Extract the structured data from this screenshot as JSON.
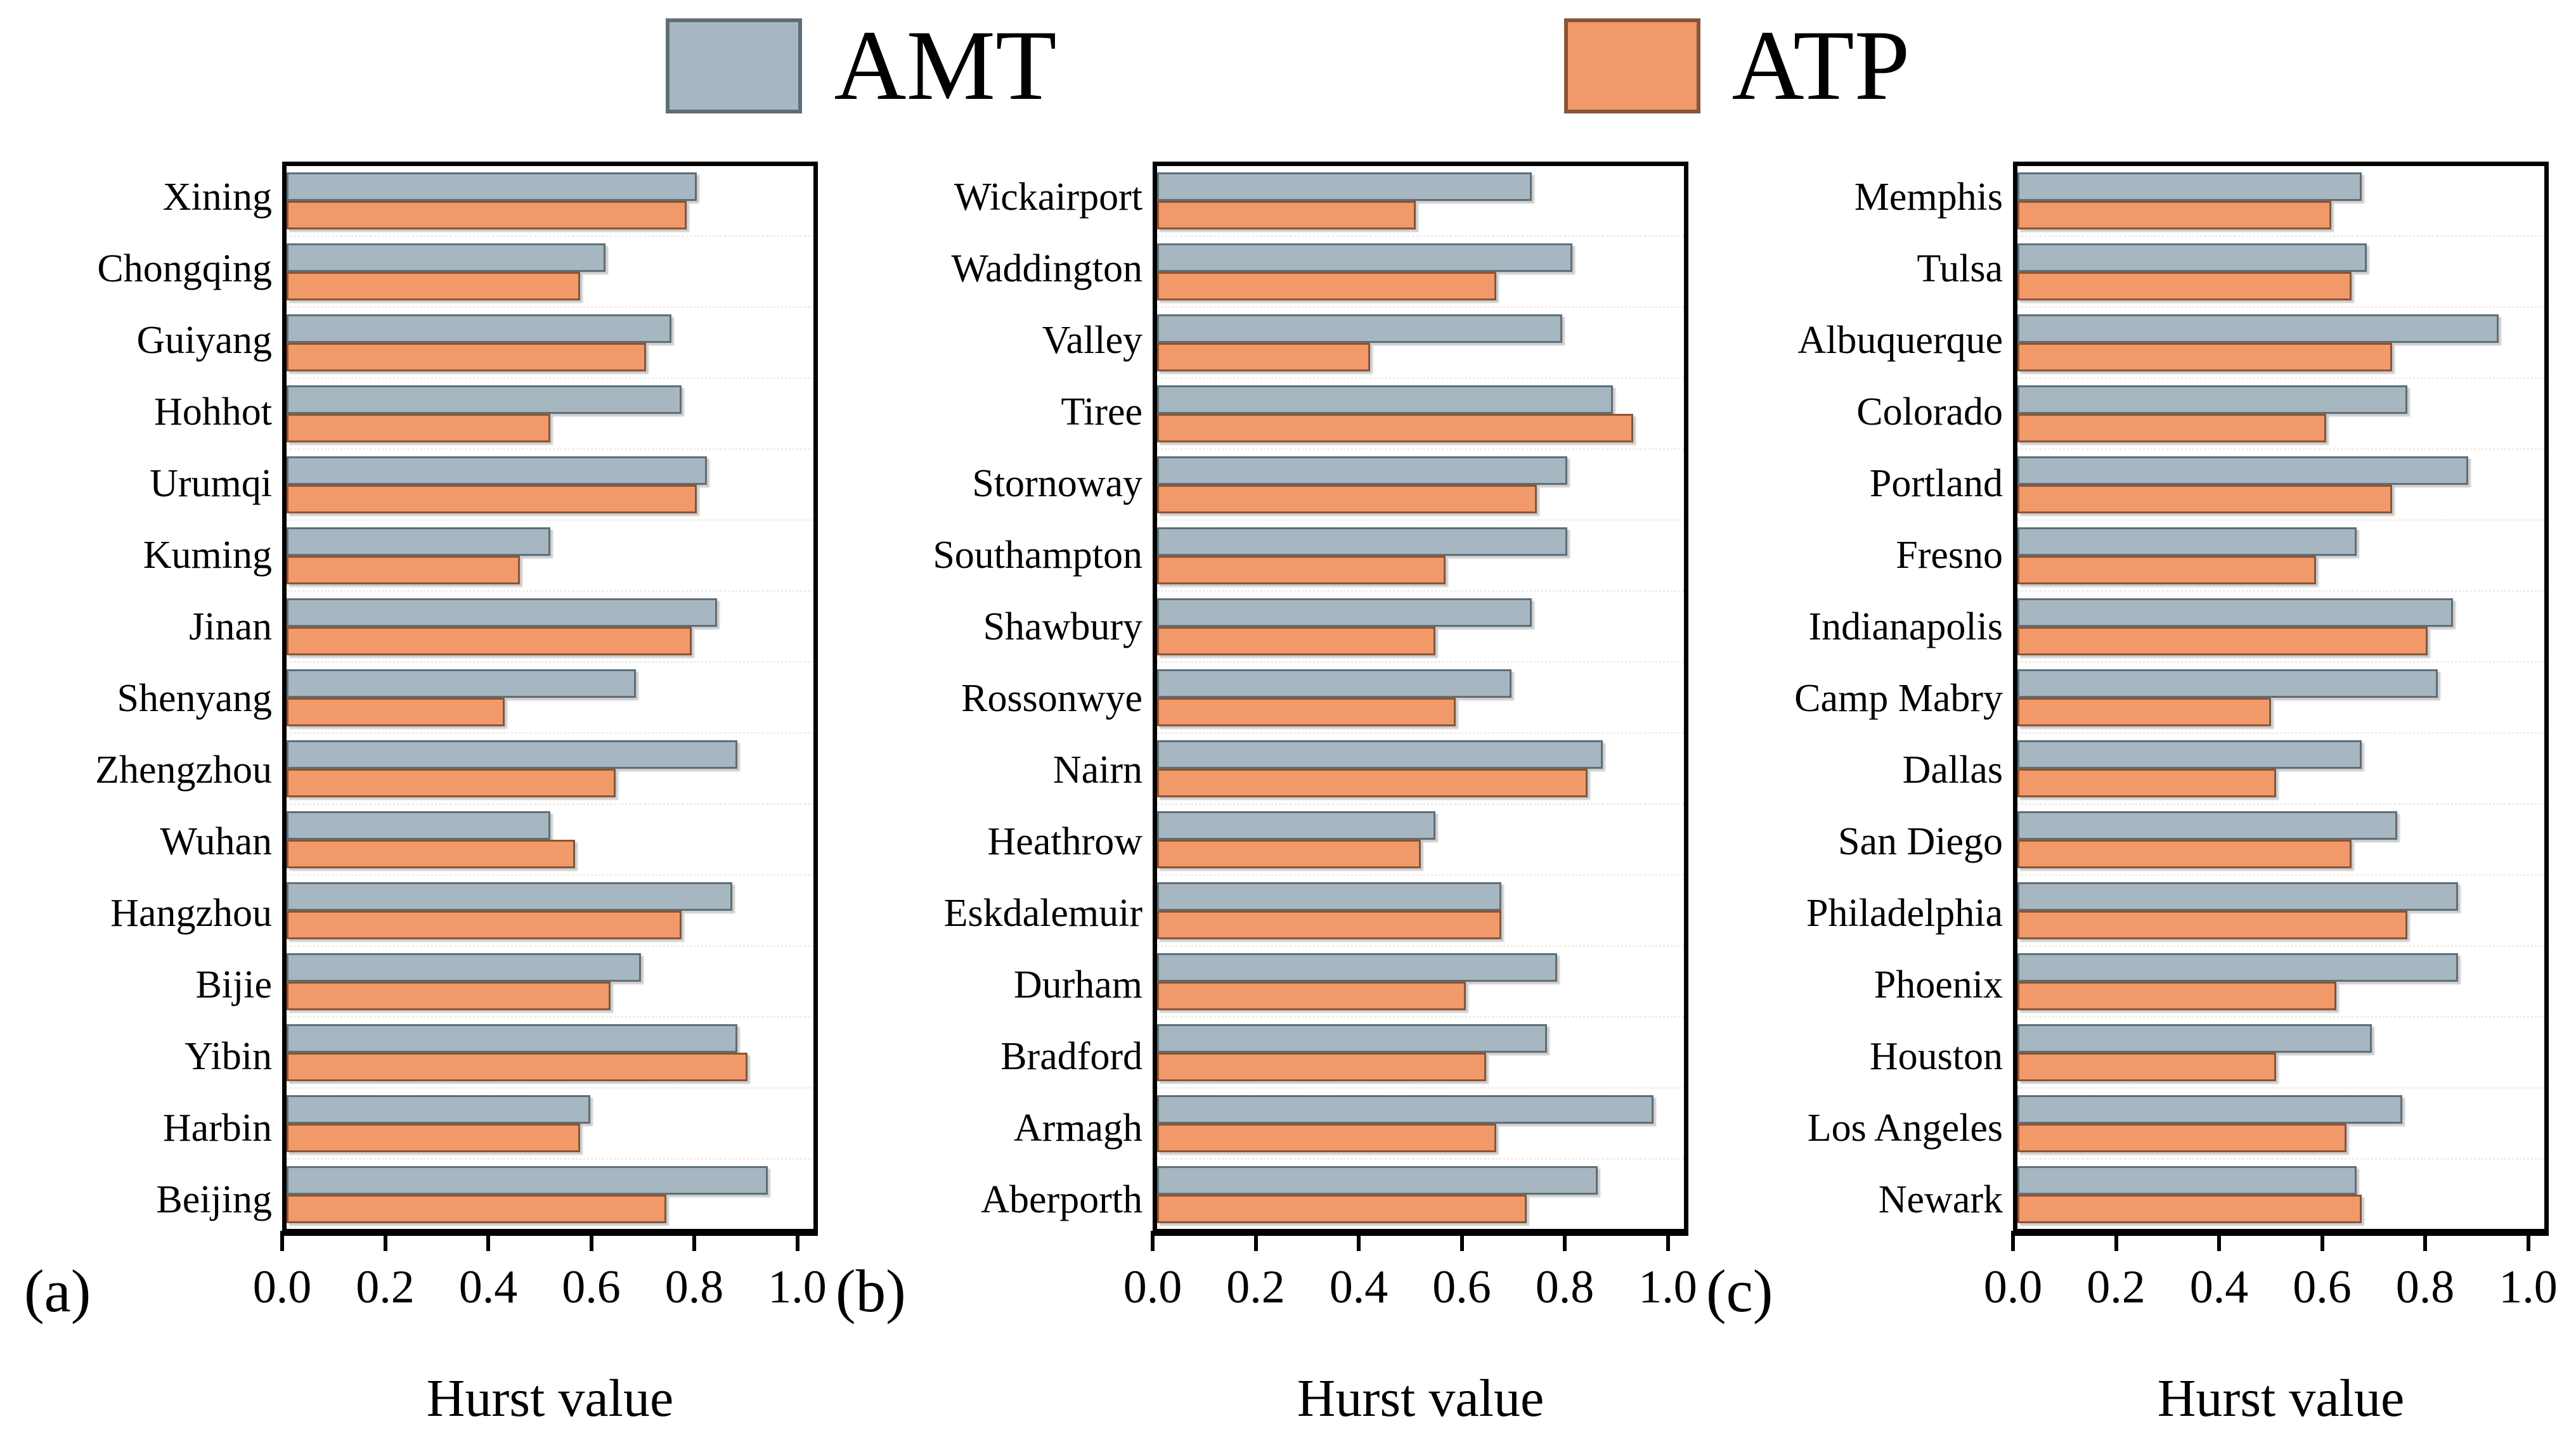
{
  "legend": {
    "items": [
      {
        "label": "AMT",
        "color": "#a6b7c2",
        "border": "#5e6e78"
      },
      {
        "label": "ATP",
        "color": "#f2996a",
        "border": "#8b5433"
      }
    ]
  },
  "axis": {
    "ticks": [
      "0.0",
      "0.2",
      "0.4",
      "0.6",
      "0.8",
      "1.0"
    ],
    "display_max": 1.04,
    "xlabel": "Hurst value"
  },
  "chart_data": [
    {
      "type": "bar",
      "orientation": "horizontal",
      "panel_label": "(a)",
      "xlabel": "Hurst value",
      "xlim": [
        0,
        1.04
      ],
      "grid": "faint dotted row separators",
      "legend_position": "top center",
      "categories": [
        "Xining",
        "Chongqing",
        "Guiyang",
        "Hohhot",
        "Urumqi",
        "Kuming",
        "Jinan",
        "Shenyang",
        "Zhengzhou",
        "Wuhan",
        "Hangzhou",
        "Bijie",
        "Yibin",
        "Harbin",
        "Beijing"
      ],
      "series": [
        {
          "name": "AMT",
          "values": [
            0.81,
            0.63,
            0.76,
            0.78,
            0.83,
            0.52,
            0.85,
            0.69,
            0.89,
            0.52,
            0.88,
            0.7,
            0.89,
            0.6,
            0.95
          ]
        },
        {
          "name": "ATP",
          "values": [
            0.79,
            0.58,
            0.71,
            0.52,
            0.81,
            0.46,
            0.8,
            0.43,
            0.65,
            0.57,
            0.78,
            0.64,
            0.91,
            0.58,
            0.75
          ]
        }
      ]
    },
    {
      "type": "bar",
      "orientation": "horizontal",
      "panel_label": "(b)",
      "xlabel": "Hurst value",
      "xlim": [
        0,
        1.04
      ],
      "grid": "faint dotted row separators",
      "legend_position": "top center",
      "categories": [
        "Wickairport",
        "Waddington",
        "Valley",
        "Tiree",
        "Stornoway",
        "Southampton",
        "Shawbury",
        "Rossonwye",
        "Nairn",
        "Heathrow",
        "Eskdalemuir",
        "Durham",
        "Bradford",
        "Armagh",
        "Aberporth"
      ],
      "series": [
        {
          "name": "AMT",
          "values": [
            0.74,
            0.82,
            0.8,
            0.9,
            0.81,
            0.81,
            0.74,
            0.7,
            0.88,
            0.55,
            0.68,
            0.79,
            0.77,
            0.98,
            0.87
          ]
        },
        {
          "name": "ATP",
          "values": [
            0.51,
            0.67,
            0.42,
            0.94,
            0.75,
            0.57,
            0.55,
            0.59,
            0.85,
            0.52,
            0.68,
            0.61,
            0.65,
            0.67,
            0.73
          ]
        }
      ]
    },
    {
      "type": "bar",
      "orientation": "horizontal",
      "panel_label": "(c)",
      "xlabel": "Hurst value",
      "xlim": [
        0,
        1.04
      ],
      "grid": "faint dotted row separators",
      "legend_position": "top center",
      "categories": [
        "Memphis",
        "Tulsa",
        "Albuquerque",
        "Colorado",
        "Portland",
        "Fresno",
        "Indianapolis",
        "Camp Mabry",
        "Dallas",
        "San Diego",
        "Philadelphia",
        "Phoenix",
        "Houston",
        "Los Angeles",
        "Newark"
      ],
      "series": [
        {
          "name": "AMT",
          "values": [
            0.68,
            0.69,
            0.95,
            0.77,
            0.89,
            0.67,
            0.86,
            0.83,
            0.68,
            0.75,
            0.87,
            0.87,
            0.7,
            0.76,
            0.67
          ]
        },
        {
          "name": "ATP",
          "values": [
            0.62,
            0.66,
            0.74,
            0.61,
            0.74,
            0.59,
            0.81,
            0.5,
            0.51,
            0.66,
            0.77,
            0.63,
            0.51,
            0.65,
            0.68
          ]
        }
      ]
    }
  ]
}
